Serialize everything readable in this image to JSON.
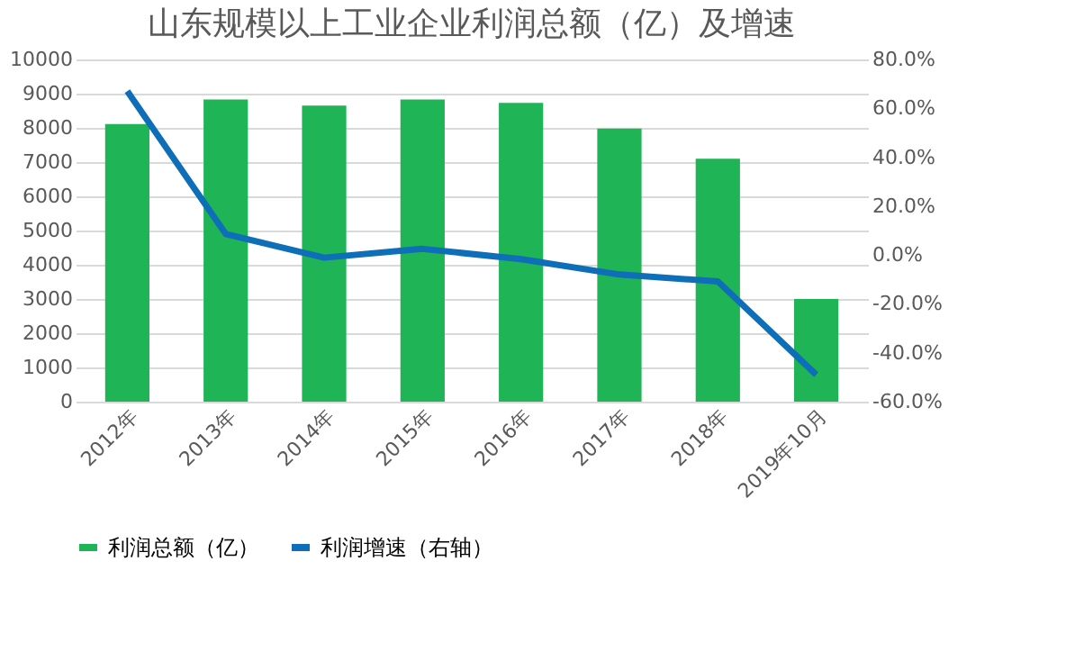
{
  "chart_data": {
    "type": "bar",
    "title": "山东规模以上工业企业利润总额（亿）及增速",
    "categories": [
      "2012年",
      "2013年",
      "2014年",
      "2015年",
      "2016年",
      "2017年",
      "2018年",
      "2019年10月"
    ],
    "series": [
      {
        "name": "利润总额（亿）",
        "color": "#1fb455",
        "values": [
          8110,
          8830,
          8650,
          8830,
          8730,
          7980,
          7100,
          3000
        ]
      },
      {
        "name": "利润增速（右轴）",
        "type": "line",
        "axis": "y2",
        "color": "#0e6eb8",
        "values": [
          67,
          8.6,
          -1.1,
          2.5,
          -1.7,
          -8,
          -10.8,
          -49
        ]
      }
    ],
    "ylim": [
      0,
      10000
    ],
    "yticks": [
      0,
      1000,
      2000,
      3000,
      4000,
      5000,
      6000,
      7000,
      8000,
      9000,
      10000
    ],
    "y2lim": [
      -60,
      80
    ],
    "y2ticks": [
      {
        "value": -60,
        "label": "-60.0%"
      },
      {
        "value": -40,
        "label": "-40.0%"
      },
      {
        "value": -20,
        "label": "-20.0%"
      },
      {
        "value": 0,
        "label": "0.0%"
      },
      {
        "value": 20,
        "label": "20.0%"
      },
      {
        "value": 40,
        "label": "40.0%"
      },
      {
        "value": 60,
        "label": "60.0%"
      },
      {
        "value": 80,
        "label": "80.0%"
      }
    ],
    "grid": "y",
    "legend": "bottom",
    "marker": "none",
    "line_style": "solid"
  }
}
